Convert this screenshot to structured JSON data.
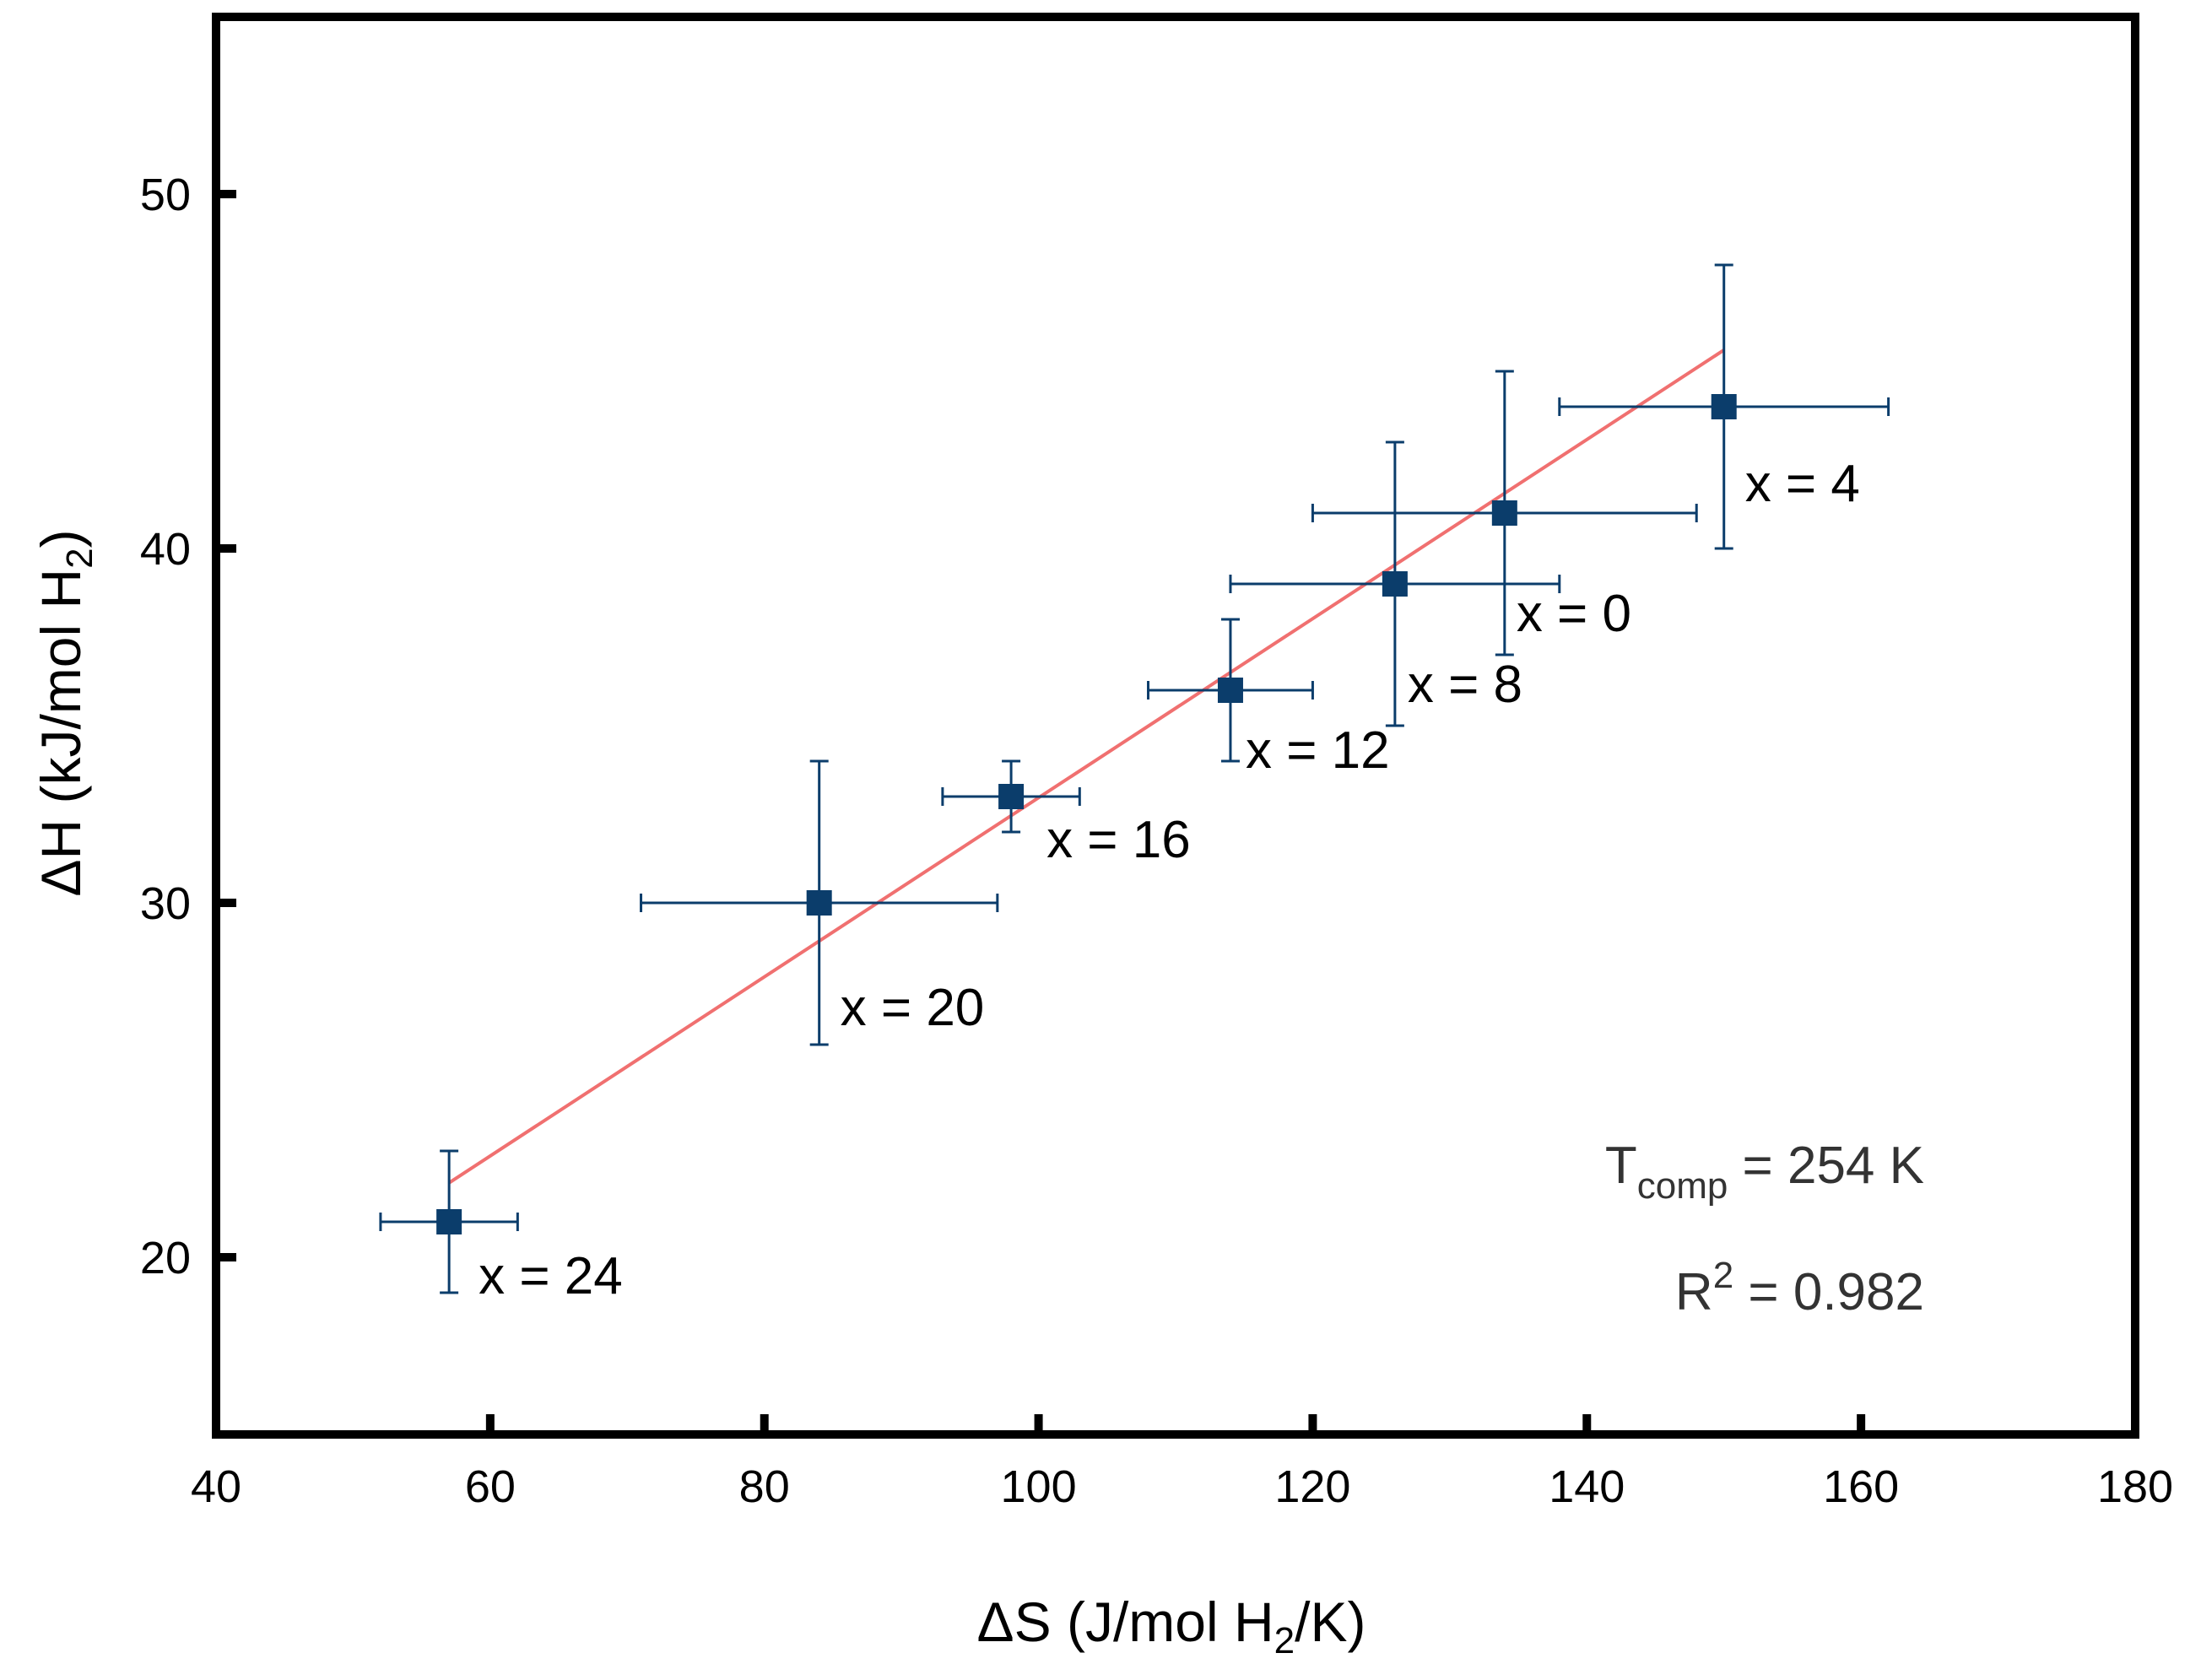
{
  "chart_data": {
    "type": "scatter",
    "title": "",
    "xlabel": "ΔS (J/mol H2/K)",
    "xlabel_parts": {
      "prefix": "ΔS (J/mol H",
      "subscript": "2",
      "suffix": "/K)"
    },
    "ylabel": "ΔH (kJ/mol H2)",
    "ylabel_parts": {
      "prefix": "ΔH (kJ/mol H",
      "subscript": "2",
      "suffix": ")"
    },
    "xlim": [
      40,
      180
    ],
    "ylim": [
      15,
      55
    ],
    "x_ticks": [
      40,
      60,
      80,
      100,
      120,
      140,
      160,
      180
    ],
    "y_ticks": [
      20,
      30,
      40,
      50
    ],
    "grid": false,
    "colors": {
      "points": "#0b3d6b",
      "fit": "#f07070",
      "frame": "#000000"
    },
    "points": [
      {
        "label": "x = 24",
        "x": 57,
        "y": 21,
        "xerr": 5,
        "yerr": 2
      },
      {
        "label": "x = 20",
        "x": 84,
        "y": 30,
        "xerr": 13,
        "yerr": 4
      },
      {
        "label": "x = 16",
        "x": 98,
        "y": 33,
        "xerr": 5,
        "yerr": 1
      },
      {
        "label": "x = 12",
        "x": 114,
        "y": 36,
        "xerr": 6,
        "yerr": 2
      },
      {
        "label": "x = 8",
        "x": 126,
        "y": 39,
        "xerr": 12,
        "yerr": 4
      },
      {
        "label": "x = 0",
        "x": 134,
        "y": 41,
        "xerr": 14,
        "yerr": 4
      },
      {
        "label": "x = 4",
        "x": 150,
        "y": 44,
        "xerr": 12,
        "yerr": 4
      }
    ],
    "fit_line": {
      "x": [
        57,
        150
      ],
      "y": [
        22.1,
        45.6
      ]
    },
    "annotations": {
      "tcomp": {
        "base": "T",
        "subscript": "comp",
        "rest": " = 254 K"
      },
      "r2": {
        "base": "R",
        "superscript": "2",
        "rest": " = 0.982"
      }
    }
  }
}
